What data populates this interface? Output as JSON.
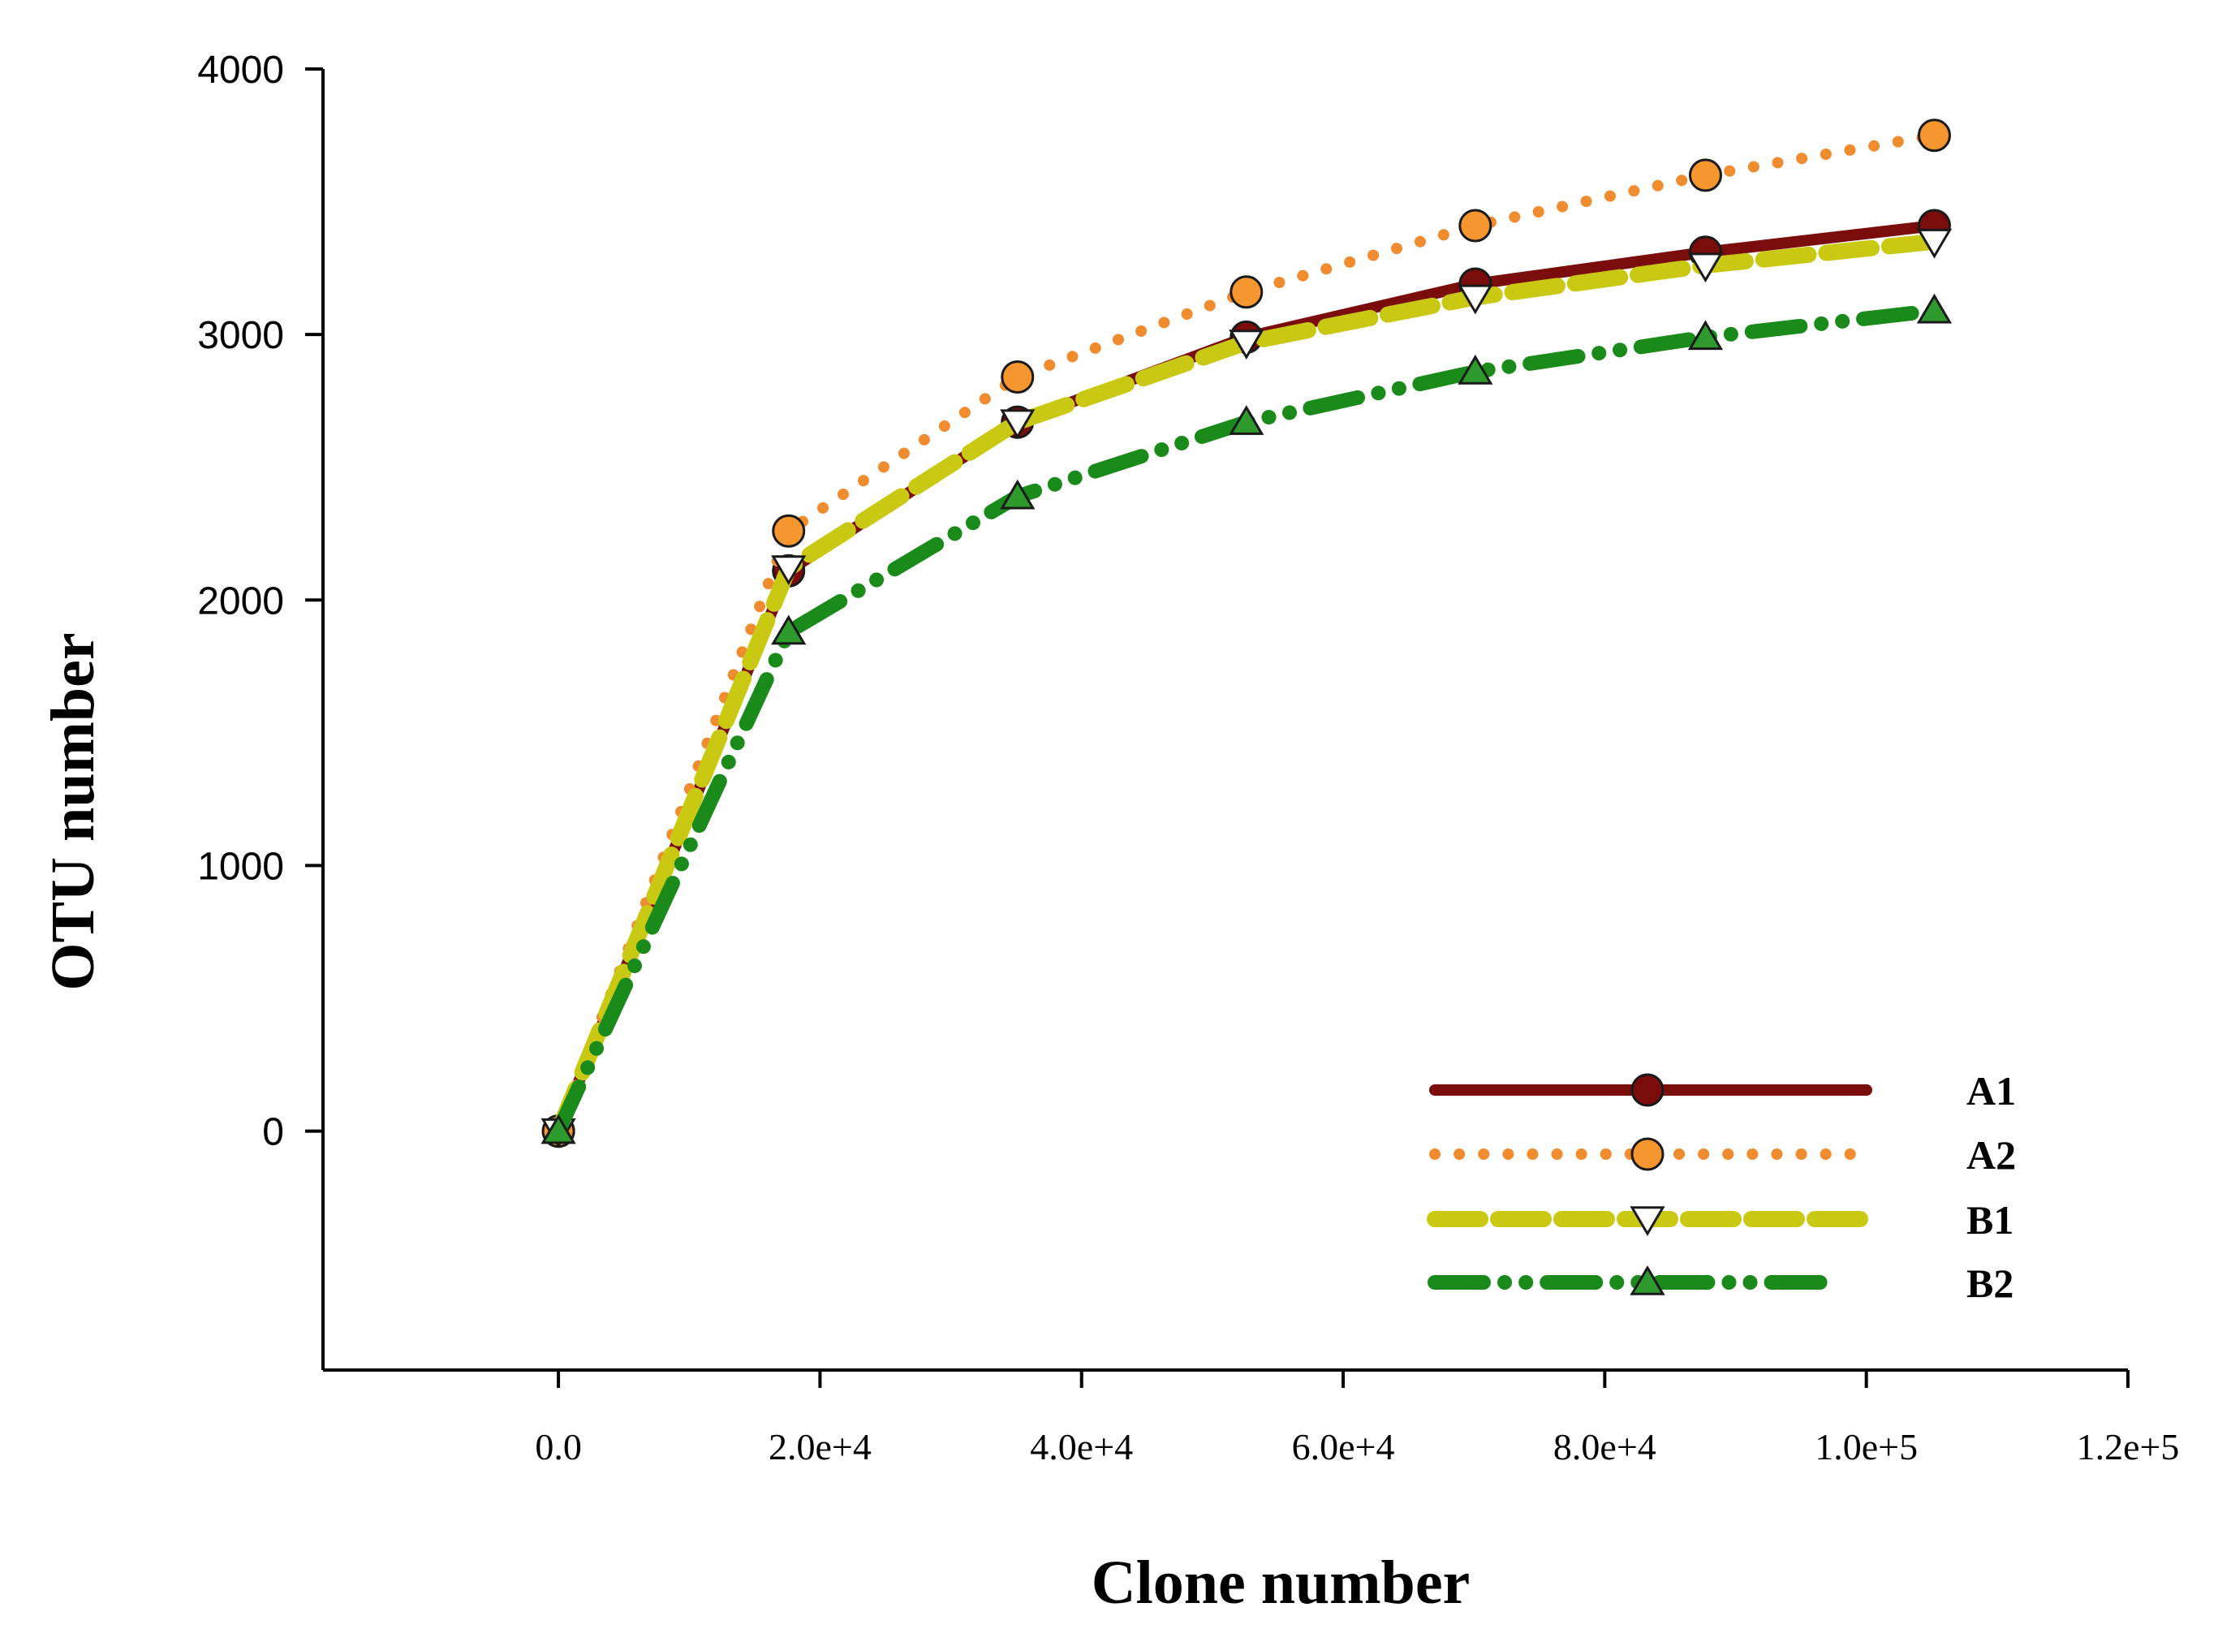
{
  "chart_data": {
    "type": "line",
    "title": "",
    "xlabel": "Clone number",
    "ylabel": "OTU number",
    "xlim": [
      -18000,
      120000
    ],
    "ylim": [
      -900,
      4000
    ],
    "x_ticks": [
      0,
      20000,
      40000,
      60000,
      80000,
      100000,
      120000
    ],
    "x_tick_labels": [
      "0.0",
      "2.0e+4",
      "4.0e+4",
      "6.0e+4",
      "8.0e+4",
      "1.0e+5",
      "1.2e+5"
    ],
    "y_ticks": [
      0,
      1000,
      2000,
      3000,
      4000
    ],
    "y_tick_labels": [
      "0",
      "1000",
      "2000",
      "3000",
      "4000"
    ],
    "grid": false,
    "legend_position": "bottom-right",
    "series": [
      {
        "name": "A1",
        "color": "#7a0c0c",
        "marker": "circle",
        "marker_fill": "#7a0c0c",
        "dash": "solid",
        "x": [
          0,
          17600,
          35100,
          52600,
          70100,
          87700,
          105200
        ],
        "values": [
          0,
          2110,
          2670,
          2990,
          3190,
          3310,
          3410
        ]
      },
      {
        "name": "A2",
        "color": "#f08c30",
        "marker": "circle",
        "marker_fill": "#f5962f",
        "dash": "dotted",
        "x": [
          0,
          17600,
          35100,
          52600,
          70100,
          87700,
          105200
        ],
        "values": [
          0,
          2260,
          2840,
          3160,
          3410,
          3600,
          3750
        ]
      },
      {
        "name": "B1",
        "color": "#c9c914",
        "marker": "triangle-down",
        "marker_fill": "#ffffff",
        "dash": "dashed",
        "x": [
          0,
          17600,
          35100,
          52600,
          70100,
          87700,
          105200
        ],
        "values": [
          0,
          2120,
          2670,
          2970,
          3140,
          3260,
          3350
        ]
      },
      {
        "name": "B2",
        "color": "#1a8a1a",
        "marker": "triangle-up",
        "marker_fill": "#2e9a2e",
        "dash": "dash-dot-dot",
        "x": [
          0,
          17600,
          35100,
          52600,
          70100,
          87700,
          105200
        ],
        "values": [
          0,
          1880,
          2390,
          2670,
          2860,
          2990,
          3090
        ]
      }
    ]
  }
}
